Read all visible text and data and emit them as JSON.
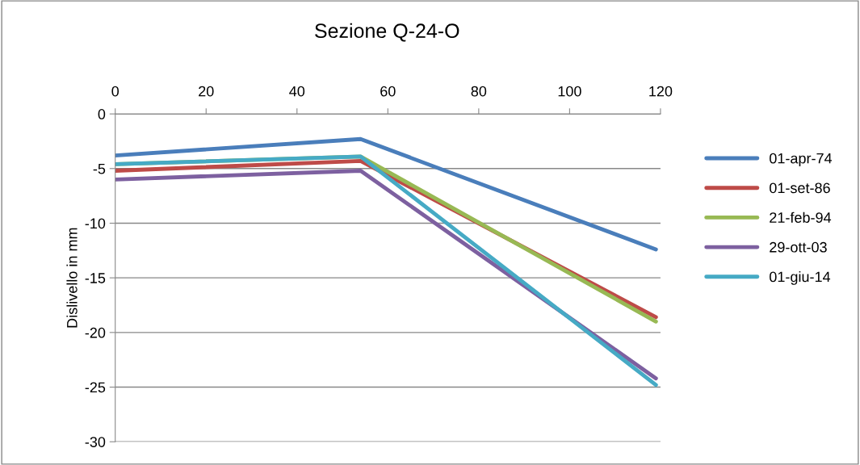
{
  "chart_data": {
    "type": "line",
    "title": "Sezione Q-24-O",
    "ylabel": "Dislivello in mm",
    "x": [
      0,
      54,
      119
    ],
    "series": [
      {
        "name": "01-apr-74",
        "color": "#4a7ebb",
        "values": [
          -3.8,
          -2.3,
          -12.4
        ]
      },
      {
        "name": "01-set-86",
        "color": "#be4b48",
        "values": [
          -5.2,
          -4.3,
          -18.6
        ]
      },
      {
        "name": "21-feb-94",
        "color": "#98b954",
        "values": [
          -4.6,
          -3.9,
          -19.0
        ]
      },
      {
        "name": "29-ott-03",
        "color": "#7d60a0",
        "values": [
          -6.0,
          -5.2,
          -24.2
        ]
      },
      {
        "name": "01-giu-14",
        "color": "#46aac5",
        "values": [
          -4.6,
          -3.9,
          -24.8
        ]
      }
    ],
    "xlim": [
      0,
      120
    ],
    "xticks": [
      0,
      20,
      40,
      60,
      80,
      100,
      120
    ],
    "ylim": [
      -30,
      0
    ],
    "yticks": [
      -30,
      -25,
      -20,
      -15,
      -10,
      -5,
      0
    ],
    "grid": "y",
    "legend": "right",
    "marker": "none",
    "line_style": "solid"
  }
}
